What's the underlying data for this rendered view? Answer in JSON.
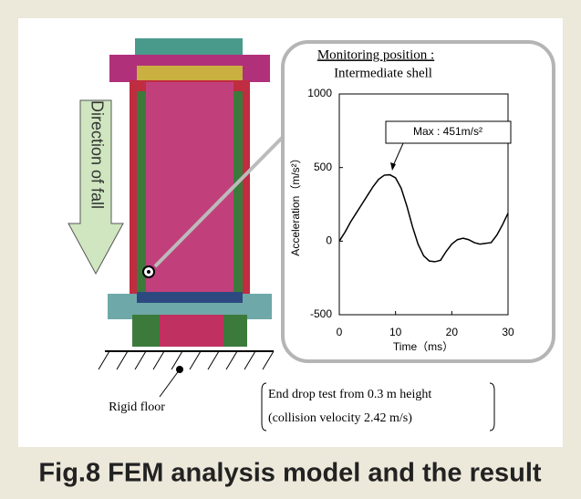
{
  "figure": {
    "caption": "Fig.8 FEM analysis model and the result",
    "direction_label": "Direction of fall",
    "floor_label": "Rigid floor",
    "test_note": [
      "End drop test from 0.3 m height",
      "(collision velocity 2.42 m/s)"
    ]
  },
  "chart_data": {
    "type": "line",
    "title": "Monitoring position :",
    "subtitle": "Intermediate shell",
    "x_label": "Time（ms）",
    "y_label": "Acceleration（m/s²）",
    "annotation": "Max : 451m/s²",
    "x": [
      0,
      1,
      2,
      3,
      4,
      5,
      6,
      7,
      8,
      9,
      10,
      11,
      12,
      13,
      14,
      15,
      16,
      17,
      18,
      19,
      20,
      21,
      22,
      23,
      24,
      25,
      26,
      27,
      28,
      29,
      30
    ],
    "values": [
      0,
      60,
      130,
      190,
      250,
      310,
      370,
      420,
      448,
      451,
      430,
      360,
      240,
      100,
      -20,
      -100,
      -135,
      -140,
      -130,
      -70,
      -20,
      10,
      20,
      10,
      -10,
      -20,
      -15,
      -10,
      40,
      110,
      190
    ],
    "color": "#000000",
    "xlim": [
      0,
      30
    ],
    "xticks": [
      0,
      10,
      20,
      30
    ],
    "ylim": [
      -500,
      1000
    ],
    "yticks": [
      -500,
      0,
      500,
      1000
    ]
  }
}
